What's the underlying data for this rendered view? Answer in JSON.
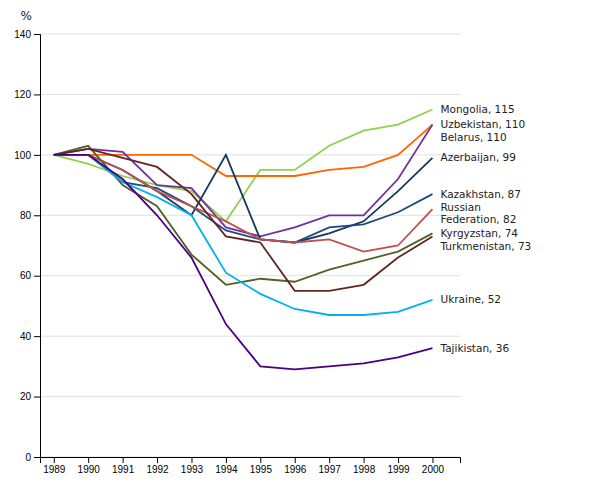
{
  "chart_data": {
    "type": "line",
    "x": [
      1989,
      1990,
      1991,
      1992,
      1993,
      1994,
      1995,
      1996,
      1997,
      1998,
      1999,
      2000
    ],
    "series": [
      {
        "name": "Mongolia, 115",
        "color": "#92d050",
        "values": [
          100,
          97,
          93,
          90,
          88,
          78,
          95,
          95,
          103,
          108,
          110,
          115
        ]
      },
      {
        "name": "Uzbekistan, 110",
        "color": "#ff6600",
        "values": [
          100,
          100,
          100,
          100,
          100,
          93,
          93,
          93,
          95,
          96,
          100,
          110
        ]
      },
      {
        "name": "Belarus, 110",
        "color": "#7030a0",
        "values": [
          100,
          102,
          101,
          90,
          89,
          76,
          73,
          76,
          80,
          80,
          92,
          110
        ]
      },
      {
        "name": "Azerbaijan, 99",
        "color": "#17375e",
        "values": [
          100,
          100,
          95,
          88,
          80,
          100,
          72,
          71,
          74,
          78,
          88,
          99
        ]
      },
      {
        "name": "Kazakhstan, 87",
        "color": "#1f497d",
        "values": [
          100,
          100,
          91,
          89,
          83,
          75,
          72,
          71,
          76,
          77,
          81,
          87
        ]
      },
      {
        "name": "Russian\nFederation, 82",
        "color": "#c0504d",
        "values": [
          100,
          100,
          95,
          88,
          83,
          78,
          72,
          71,
          72,
          68,
          70,
          82
        ]
      },
      {
        "name": "Kyrgyzstan, 74",
        "color": "#4f6228",
        "values": [
          100,
          103,
          90,
          83,
          67,
          57,
          59,
          58,
          62,
          65,
          68,
          74
        ]
      },
      {
        "name": "Turkmenistan, 73",
        "color": "#632523",
        "values": [
          100,
          102,
          99,
          96,
          87,
          73,
          71,
          55,
          55,
          57,
          66,
          73
        ]
      },
      {
        "name": "Ukraine, 52",
        "color": "#00b0f0",
        "values": [
          100,
          100,
          91,
          86,
          80,
          61,
          54,
          49,
          47,
          47,
          48,
          52
        ]
      },
      {
        "name": "Tajikistan, 36",
        "color": "#4b0082",
        "values": [
          100,
          100,
          92,
          80,
          66,
          44,
          30,
          29,
          30,
          31,
          33,
          36
        ]
      }
    ],
    "ylabel": "%",
    "xlim": [
      1988.6,
      2000.8
    ],
    "ylim": [
      0,
      140
    ],
    "xticks": [
      1989,
      1990,
      1991,
      1992,
      1993,
      1994,
      1995,
      1996,
      1997,
      1998,
      1999,
      2000
    ],
    "yticks": [
      0,
      20,
      40,
      60,
      80,
      100,
      120,
      140
    ],
    "grid": true
  }
}
